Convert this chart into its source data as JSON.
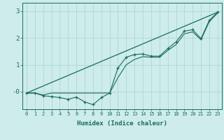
{
  "xlabel": "Humidex (Indice chaleur)",
  "ylabel": "",
  "bg_color": "#cdecea",
  "grid_color": "#afd8d4",
  "line_color": "#1a6b5e",
  "xlim": [
    -0.5,
    23.5
  ],
  "ylim": [
    -0.65,
    3.3
  ],
  "xticks": [
    0,
    1,
    2,
    3,
    4,
    5,
    6,
    7,
    8,
    9,
    10,
    11,
    12,
    13,
    14,
    15,
    16,
    17,
    18,
    19,
    20,
    21,
    22,
    23
  ],
  "yticks": [
    0,
    1,
    2,
    3
  ],
  "ytick_labels": [
    "-0",
    "1",
    "2",
    "3"
  ],
  "data_line": [
    [
      0,
      -0.05
    ],
    [
      1,
      -0.05
    ],
    [
      2,
      -0.15
    ],
    [
      3,
      -0.18
    ],
    [
      4,
      -0.22
    ],
    [
      5,
      -0.28
    ],
    [
      6,
      -0.2
    ],
    [
      7,
      -0.38
    ],
    [
      8,
      -0.48
    ],
    [
      9,
      -0.22
    ],
    [
      10,
      -0.05
    ],
    [
      11,
      0.88
    ],
    [
      12,
      1.28
    ],
    [
      13,
      1.38
    ],
    [
      14,
      1.4
    ],
    [
      15,
      1.32
    ],
    [
      16,
      1.32
    ],
    [
      17,
      1.6
    ],
    [
      18,
      1.85
    ],
    [
      19,
      2.25
    ],
    [
      20,
      2.3
    ],
    [
      21,
      1.97
    ],
    [
      22,
      2.65
    ],
    [
      23,
      2.95
    ]
  ],
  "regression_line": [
    [
      0,
      -0.05
    ],
    [
      23,
      2.95
    ]
  ],
  "data_line2": [
    [
      0,
      -0.05
    ],
    [
      1,
      -0.05
    ],
    [
      2,
      -0.12
    ],
    [
      3,
      -0.05
    ],
    [
      4,
      -0.05
    ],
    [
      10,
      -0.05
    ],
    [
      11,
      0.52
    ],
    [
      12,
      1.0
    ],
    [
      13,
      1.2
    ],
    [
      14,
      1.3
    ],
    [
      15,
      1.28
    ],
    [
      16,
      1.28
    ],
    [
      17,
      1.53
    ],
    [
      18,
      1.75
    ],
    [
      19,
      2.15
    ],
    [
      20,
      2.22
    ],
    [
      21,
      1.93
    ],
    [
      22,
      2.6
    ],
    [
      23,
      2.92
    ]
  ]
}
